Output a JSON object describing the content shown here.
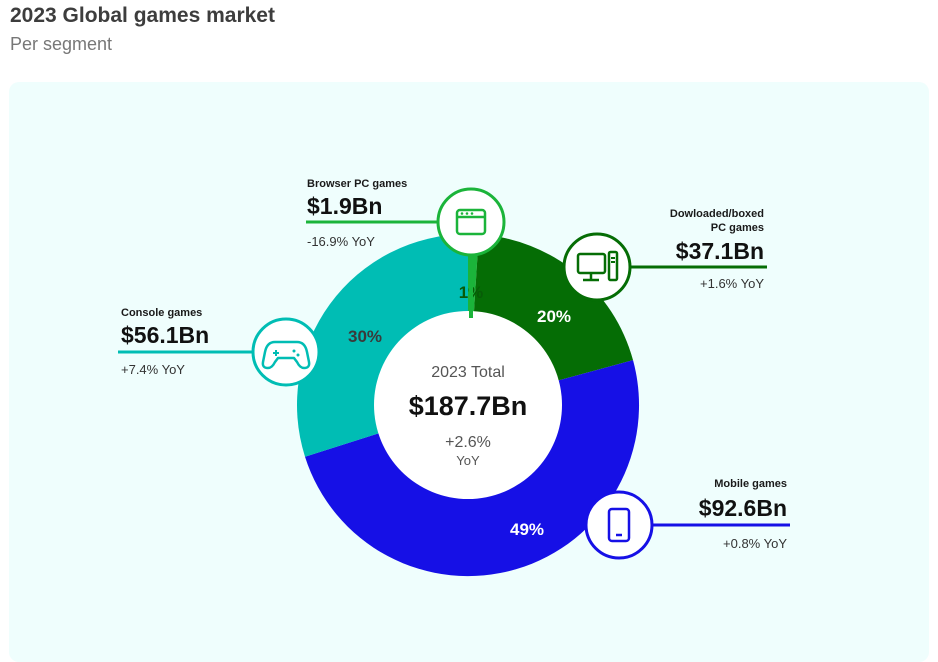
{
  "header": {
    "title": "2023 Global games market",
    "subtitle": "Per segment"
  },
  "colors": {
    "browser": "#1bb43a",
    "download": "#056d05",
    "mobile": "#1610e6",
    "console": "#00bdb4",
    "panel_bg": "#effefd"
  },
  "center": {
    "label": "2023 Total",
    "value": "$187.7Bn",
    "yoy": "+2.6%",
    "yoy_suffix": "YoY"
  },
  "chart_data": {
    "type": "pie",
    "title": "2023 Global games market",
    "subtitle": "Per segment",
    "total": 187.7,
    "unit": "$Bn",
    "series": [
      {
        "key": "browser",
        "name": "Browser PC games",
        "value": 1.9,
        "share": 1,
        "value_label": "$1.9Bn",
        "yoy": "-16.9% YoY",
        "pct_label": "1%",
        "icon": "browser-window-icon"
      },
      {
        "key": "download",
        "name_lines": [
          "Dowloaded/boxed",
          "PC games"
        ],
        "value": 37.1,
        "share": 20,
        "value_label": "$37.1Bn",
        "yoy": "+1.6% YoY",
        "pct_label": "20%",
        "icon": "desktop-computer-icon"
      },
      {
        "key": "mobile",
        "name": "Mobile games",
        "value": 92.6,
        "share": 49,
        "value_label": "$92.6Bn",
        "yoy": "+0.8% YoY",
        "pct_label": "49%",
        "icon": "smartphone-icon"
      },
      {
        "key": "console",
        "name": "Console games",
        "value": 56.1,
        "share": 30,
        "value_label": "$56.1Bn",
        "yoy": "+7.4% YoY",
        "pct_label": "30%",
        "icon": "gamepad-icon"
      }
    ]
  }
}
